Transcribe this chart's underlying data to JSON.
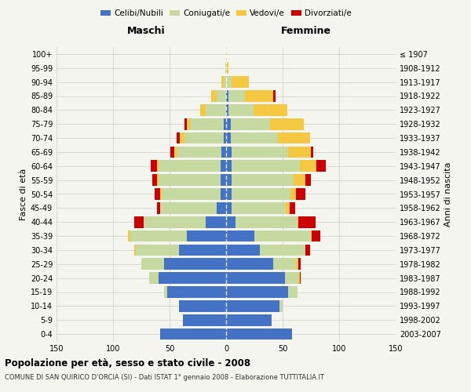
{
  "age_groups": [
    "0-4",
    "5-9",
    "10-14",
    "15-19",
    "20-24",
    "25-29",
    "30-34",
    "35-39",
    "40-44",
    "45-49",
    "50-54",
    "55-59",
    "60-64",
    "65-69",
    "70-74",
    "75-79",
    "80-84",
    "85-89",
    "90-94",
    "95-99",
    "100+"
  ],
  "birth_years": [
    "2003-2007",
    "1998-2002",
    "1993-1997",
    "1988-1992",
    "1983-1987",
    "1978-1982",
    "1973-1977",
    "1968-1972",
    "1963-1967",
    "1958-1962",
    "1953-1957",
    "1948-1952",
    "1943-1947",
    "1938-1942",
    "1933-1937",
    "1928-1932",
    "1923-1927",
    "1918-1922",
    "1913-1917",
    "1908-1912",
    "≤ 1907"
  ],
  "male_celibe": [
    58,
    38,
    42,
    52,
    60,
    55,
    42,
    35,
    18,
    8,
    5,
    5,
    5,
    4,
    2,
    2,
    0,
    0,
    0,
    0,
    0
  ],
  "male_coniugato": [
    0,
    0,
    0,
    3,
    8,
    20,
    38,
    50,
    55,
    50,
    52,
    55,
    55,
    40,
    35,
    30,
    18,
    8,
    2,
    1,
    0
  ],
  "male_vedovo": [
    0,
    0,
    0,
    0,
    0,
    0,
    1,
    2,
    0,
    0,
    1,
    1,
    1,
    2,
    4,
    3,
    5,
    5,
    2,
    0,
    0
  ],
  "male_divorziato": [
    0,
    0,
    0,
    0,
    0,
    0,
    0,
    0,
    8,
    3,
    5,
    4,
    6,
    3,
    3,
    2,
    0,
    0,
    0,
    0,
    0
  ],
  "female_celibe": [
    58,
    40,
    47,
    55,
    52,
    42,
    30,
    25,
    8,
    5,
    5,
    5,
    5,
    5,
    4,
    4,
    2,
    2,
    0,
    0,
    0
  ],
  "female_coniugato": [
    0,
    0,
    3,
    8,
    12,
    20,
    40,
    50,
    55,
    48,
    52,
    55,
    60,
    50,
    42,
    35,
    22,
    15,
    5,
    0,
    0
  ],
  "female_vedovo": [
    0,
    0,
    0,
    0,
    1,
    2,
    0,
    1,
    1,
    3,
    5,
    10,
    15,
    20,
    28,
    30,
    30,
    25,
    15,
    2,
    1
  ],
  "female_divorziato": [
    0,
    0,
    0,
    0,
    1,
    2,
    4,
    7,
    15,
    5,
    8,
    5,
    8,
    2,
    0,
    0,
    0,
    2,
    0,
    0,
    0
  ],
  "color_celibe": "#4472C4",
  "color_coniugato": "#c5d9a0",
  "color_vedovo": "#f5c842",
  "color_divorziato": "#cc0000",
  "title": "Popolazione per età, sesso e stato civile - 2008",
  "subtitle": "COMUNE DI SAN QUIRICO D'ORCIA (SI) - Dati ISTAT 1° gennaio 2008 - Elaborazione TUTTITALIA.IT",
  "xlabel_left": "Maschi",
  "xlabel_right": "Femmine",
  "ylabel_left": "Fasce di età",
  "ylabel_right": "Anni di nascita",
  "xlim": 150,
  "background_color": "#f5f5f0",
  "grid_color": "#cccccc"
}
